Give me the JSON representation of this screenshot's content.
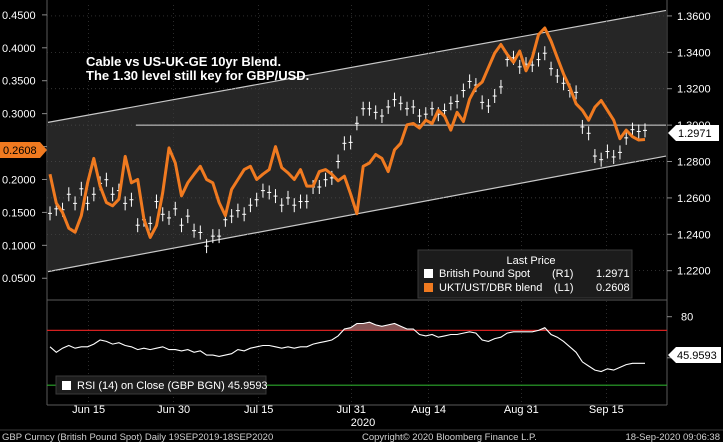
{
  "chart_data": [
    {
      "type": "line",
      "title": "Cable vs US-UK-GE 10yr Blend.",
      "subtitle": "The 1.30 level still key for GBP/USD.",
      "x_ticks": [
        "Jun 15",
        "Jun 30",
        "Jul 15",
        "Jul 31",
        "Aug 14",
        "Aug 31",
        "Sep 15"
      ],
      "year_label": "2020",
      "left_axis": {
        "ticks": [
          "0.4500",
          "0.4000",
          "0.3500",
          "0.3000",
          "0.2500",
          "0.2000",
          "0.1500",
          "0.1000",
          "0.0500"
        ],
        "range": [
          0.02,
          0.465
        ]
      },
      "right_axis": {
        "ticks": [
          "1.3600",
          "1.3400",
          "1.3200",
          "1.3000",
          "1.2800",
          "1.2600",
          "1.2400",
          "1.2200"
        ],
        "range": [
          1.205,
          1.366
        ]
      },
      "legend": {
        "header": "Last Price",
        "items": [
          {
            "name": "British Pound Spot",
            "axis_tag": "(R1)",
            "value": "1.2971",
            "color": "#ffffff"
          },
          {
            "name": "UKT/UST/DBR blend",
            "axis_tag": "(L1)",
            "value": "0.2608",
            "color": "#f07a20"
          }
        ]
      },
      "last_price_labels": {
        "right": "1.2971",
        "left": "0.2608"
      },
      "series": [
        {
          "name": "British Pound Spot",
          "axis": "right",
          "color": "#ffffff",
          "style": "high-low bars",
          "values": [
            1.2515,
            1.254,
            1.2535,
            1.262,
            1.257,
            1.265,
            1.257,
            1.262,
            1.268,
            1.27,
            1.262,
            1.264,
            1.257,
            1.259,
            1.245,
            1.248,
            1.246,
            1.258,
            1.251,
            1.249,
            1.254,
            1.245,
            1.25,
            1.242,
            1.241,
            1.2335,
            1.239,
            1.239,
            1.248,
            1.25,
            1.253,
            1.251,
            1.256,
            1.259,
            1.264,
            1.263,
            1.261,
            1.256,
            1.26,
            1.256,
            1.258,
            1.258,
            1.266,
            1.266,
            1.27,
            1.271,
            1.28,
            1.29,
            1.2905,
            1.301,
            1.309,
            1.309,
            1.307,
            1.305,
            1.31,
            1.314,
            1.312,
            1.309,
            1.31,
            1.305,
            1.306,
            1.309,
            1.306,
            1.308,
            1.312,
            1.313,
            1.319,
            1.324,
            1.322,
            1.3125,
            1.3105,
            1.316,
            1.321,
            1.336,
            1.337,
            1.332,
            1.3335,
            1.333,
            1.336,
            1.3395,
            1.331,
            1.327,
            1.323,
            1.319,
            1.318,
            1.299,
            1.2955,
            1.283,
            1.281,
            1.2855,
            1.2825,
            1.285,
            1.293,
            1.2975,
            1.2965,
            1.2971
          ]
        },
        {
          "name": "UKT/UST/DBR blend",
          "axis": "left",
          "color": "#f07a20",
          "values": [
            0.208,
            0.164,
            0.15,
            0.126,
            0.12,
            0.145,
            0.195,
            0.232,
            0.19,
            0.165,
            0.16,
            0.17,
            0.235,
            0.195,
            0.2,
            0.14,
            0.112,
            0.13,
            0.18,
            0.248,
            0.225,
            0.175,
            0.195,
            0.208,
            0.22,
            0.2,
            0.195,
            0.165,
            0.145,
            0.185,
            0.2,
            0.215,
            0.22,
            0.2,
            0.208,
            0.215,
            0.25,
            0.218,
            0.21,
            0.2,
            0.215,
            0.19,
            0.19,
            0.212,
            0.215,
            0.208,
            0.198,
            0.205,
            0.178,
            0.148,
            0.22,
            0.225,
            0.238,
            0.232,
            0.212,
            0.245,
            0.255,
            0.283,
            0.285,
            0.278,
            0.29,
            0.285,
            0.305,
            0.296,
            0.275,
            0.302,
            0.288,
            0.322,
            0.34,
            0.348,
            0.37,
            0.392,
            0.405,
            0.39,
            0.378,
            0.395,
            0.365,
            0.385,
            0.42,
            0.43,
            0.41,
            0.385,
            0.36,
            0.34,
            0.315,
            0.305,
            0.29,
            0.31,
            0.32,
            0.305,
            0.29,
            0.262,
            0.275,
            0.265,
            0.26,
            0.2608
          ]
        }
      ],
      "reference_line": {
        "axis": "right",
        "value": 1.3
      },
      "channel": {
        "axis": "right",
        "upper": [
          1.3015,
          1.363
        ],
        "lower": [
          1.2195,
          1.283
        ]
      },
      "extra_left_labels": [
        "0.4100",
        "0.2000",
        "0.3000",
        "0.3800"
      ]
    },
    {
      "type": "line",
      "title": "",
      "legend_text": "RSI (14)  on Close (GBP BGN) 45.9593",
      "last_value": "45.9593",
      "right_axis": {
        "ticks": [
          "80",
          "50"
        ],
        "range": [
          17,
          90
        ]
      },
      "thresholds": {
        "upper": {
          "value": 70,
          "color": "#d42020"
        },
        "lower": {
          "value": 30,
          "color": "#2ca82c"
        }
      },
      "series": [
        {
          "name": "RSI (14)",
          "color": "#ffffff",
          "values": [
            58,
            54,
            57,
            59,
            57,
            58,
            58,
            60,
            63,
            62,
            60,
            61,
            59,
            58,
            56,
            57,
            56,
            57,
            58,
            56,
            56,
            55,
            56,
            54,
            55,
            52,
            52,
            51,
            52,
            53,
            56,
            55,
            57,
            58,
            59,
            59,
            58,
            57,
            58,
            57,
            58,
            58,
            60,
            61,
            62,
            63,
            66,
            71,
            72,
            75,
            75,
            76,
            74,
            73,
            74,
            75,
            73,
            71,
            71,
            67,
            66,
            67,
            65,
            66,
            67,
            67,
            68,
            69,
            68,
            63,
            62,
            64,
            65,
            68,
            69,
            69,
            69,
            69,
            70,
            72,
            67,
            65,
            62,
            58,
            54,
            47,
            44,
            41,
            40,
            42,
            41,
            43,
            45,
            46,
            46,
            46
          ]
        }
      ]
    }
  ],
  "footer": {
    "left": "GBP Curncy (British Pound Spot)  Daily 19SEP2019-18SEP2020",
    "center": "Copyright© 2020 Bloomberg Finance L.P.",
    "right": "18-Sep-2020 09:06:38"
  }
}
